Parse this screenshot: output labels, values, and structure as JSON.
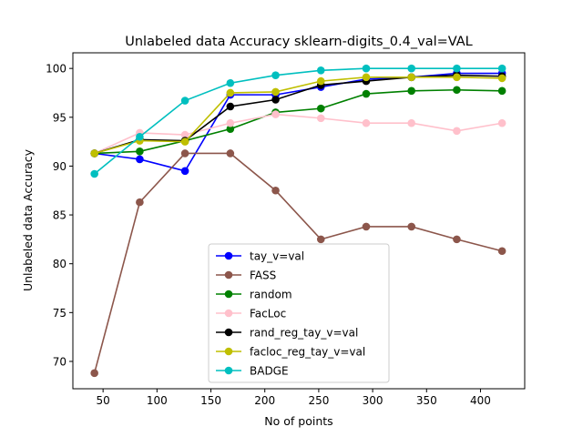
{
  "chart_data": {
    "type": "line",
    "title": "Unlabeled data Accuracy sklearn-digits_0.4_val=VAL",
    "xlabel": "No of points",
    "ylabel": "Unlabeled data Accuracy",
    "xlim": [
      22,
      441
    ],
    "ylim": [
      67.2,
      101.6
    ],
    "xticks": [
      50,
      100,
      150,
      200,
      250,
      300,
      350,
      400
    ],
    "yticks": [
      70,
      75,
      80,
      85,
      90,
      95,
      100
    ],
    "grid": false,
    "legend_position": "lower center",
    "x": [
      42,
      84,
      126,
      168,
      210,
      252,
      294,
      336,
      378,
      420
    ],
    "series": [
      {
        "name": "tay_v=val",
        "color": "#0000ff",
        "values": [
          91.3,
          90.7,
          89.5,
          97.3,
          97.3,
          98.1,
          98.9,
          99.1,
          99.5,
          99.5
        ]
      },
      {
        "name": "FASS",
        "color": "#8c564b",
        "values": [
          68.8,
          86.3,
          91.3,
          91.3,
          87.5,
          82.5,
          83.8,
          83.8,
          82.5,
          81.3
        ]
      },
      {
        "name": "random",
        "color": "#008000",
        "values": [
          91.3,
          91.5,
          92.6,
          93.8,
          95.5,
          95.9,
          97.4,
          97.7,
          97.8,
          97.7
        ]
      },
      {
        "name": "FacLoc",
        "color": "#ffc0cb",
        "values": [
          91.3,
          93.4,
          93.2,
          94.4,
          95.3,
          94.9,
          94.4,
          94.4,
          93.6,
          94.4
        ]
      },
      {
        "name": "rand_reg_tay_v=val",
        "color": "#000000",
        "values": [
          91.3,
          92.7,
          92.6,
          96.1,
          96.8,
          98.3,
          98.7,
          99.1,
          99.3,
          99.2
        ]
      },
      {
        "name": "facloc_reg_tay_v=val",
        "color": "#bfbf00",
        "values": [
          91.3,
          92.6,
          92.5,
          97.5,
          97.6,
          98.7,
          99.1,
          99.1,
          99.1,
          99.0
        ]
      },
      {
        "name": "BADGE",
        "color": "#00bfbf",
        "values": [
          89.2,
          93.0,
          96.7,
          98.5,
          99.3,
          99.8,
          100.0,
          100.0,
          100.0,
          100.0
        ]
      }
    ]
  }
}
